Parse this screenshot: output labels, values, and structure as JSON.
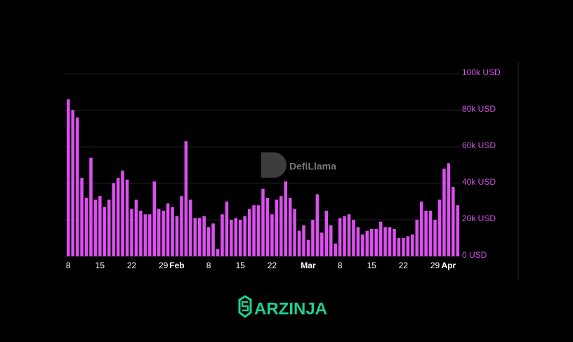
{
  "chart_data": {
    "type": "bar",
    "watermark": "DefiLlama",
    "brand": "ARZINJA",
    "color": "#dd4ff0",
    "categories": [
      "8",
      null,
      null,
      null,
      null,
      null,
      null,
      "15",
      null,
      null,
      null,
      null,
      null,
      null,
      "22",
      null,
      null,
      null,
      null,
      null,
      null,
      "29",
      null,
      null,
      "Feb",
      null,
      null,
      null,
      null,
      null,
      null,
      "8",
      null,
      null,
      null,
      null,
      null,
      null,
      "15",
      null,
      null,
      null,
      null,
      null,
      null,
      "22",
      null,
      null,
      null,
      null,
      null,
      null,
      null,
      "Mar",
      null,
      null,
      null,
      null,
      null,
      null,
      "8",
      null,
      null,
      null,
      null,
      null,
      null,
      "15",
      null,
      null,
      null,
      null,
      null,
      null,
      "22",
      null,
      null,
      null,
      null,
      null,
      null,
      "29",
      null,
      null,
      "Apr",
      null,
      null
    ],
    "values": [
      86000,
      80000,
      76000,
      43000,
      32000,
      54000,
      31000,
      33000,
      27000,
      31000,
      40000,
      43000,
      47000,
      42000,
      26000,
      31000,
      25000,
      23000,
      23000,
      41000,
      26000,
      25000,
      29000,
      27000,
      22000,
      33000,
      63000,
      31000,
      21000,
      21000,
      22000,
      16000,
      18000,
      4000,
      23000,
      30000,
      20000,
      21000,
      20000,
      22000,
      26000,
      28000,
      28000,
      37000,
      32000,
      23000,
      31000,
      33000,
      41000,
      32000,
      26000,
      14000,
      17000,
      9000,
      20000,
      34000,
      13000,
      25000,
      17000,
      7000,
      21000,
      22000,
      23000,
      20000,
      16000,
      12000,
      14000,
      15000,
      15000,
      19000,
      16000,
      16000,
      15000,
      10000,
      10000,
      11000,
      12000,
      20000,
      30000,
      25000,
      25000,
      20000,
      31000,
      48000,
      51000,
      38000,
      28000
    ],
    "ylim": [
      0,
      100000
    ],
    "yticks": [
      {
        "value": 0,
        "label": "0 USD"
      },
      {
        "value": 20000,
        "label": "20k USD"
      },
      {
        "value": 40000,
        "label": "40k USD"
      },
      {
        "value": 60000,
        "label": "60k USD"
      },
      {
        "value": 80000,
        "label": "80k USD"
      },
      {
        "value": 100000,
        "label": "100k USD"
      }
    ],
    "grid": true
  }
}
